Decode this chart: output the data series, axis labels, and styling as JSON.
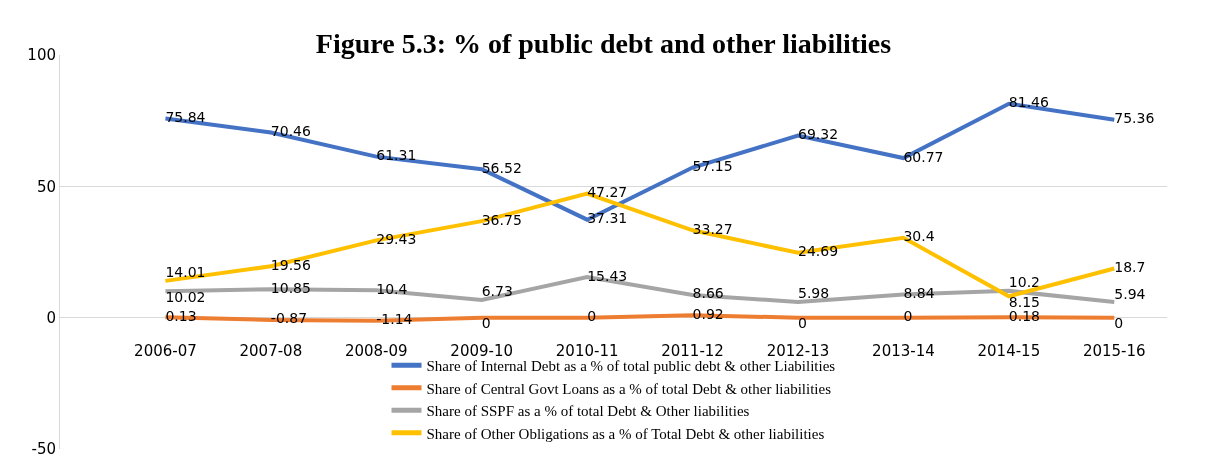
{
  "chart_data": {
    "type": "line",
    "title": "Figure 5.3: % of public debt and other liabilities",
    "categories": [
      "2006-07",
      "2007-08",
      "2008-09",
      "2009-10",
      "2010-11",
      "2011-12",
      "2012-13",
      "2013-14",
      "2014-15",
      "2015-16"
    ],
    "series": [
      {
        "name": "Share of Internal Debt as a % of total public debt & other Liabilities",
        "color": "#4472c4",
        "values": [
          75.84,
          70.46,
          61.31,
          56.52,
          37.31,
          57.15,
          69.32,
          60.77,
          81.46,
          75.36
        ]
      },
      {
        "name": "Share of Central Govt Loans as a % of total Debt & other liabilities",
        "color": "#ed7d31",
        "values": [
          0.13,
          -0.87,
          -1.14,
          0,
          0,
          0.92,
          0,
          0,
          0.18,
          0
        ]
      },
      {
        "name": "Share of SSPF as a % of total Debt & Other liabilities",
        "color": "#a5a5a5",
        "values": [
          10.02,
          10.85,
          10.4,
          6.73,
          15.43,
          8.66,
          5.98,
          8.84,
          10.2,
          5.94
        ]
      },
      {
        "name": "Share of Other Obligations as a % of Total Debt & other liabilities",
        "color": "#ffc000",
        "values": [
          14.01,
          19.56,
          29.43,
          36.75,
          47.27,
          33.27,
          24.69,
          30.4,
          8.15,
          18.7
        ]
      }
    ],
    "ylim": [
      -50,
      100
    ],
    "yticks": [
      -50,
      0,
      50,
      100
    ],
    "grid": "y",
    "legend": "bottom",
    "marker": "none",
    "line_style": "solid",
    "data_labels": true
  }
}
